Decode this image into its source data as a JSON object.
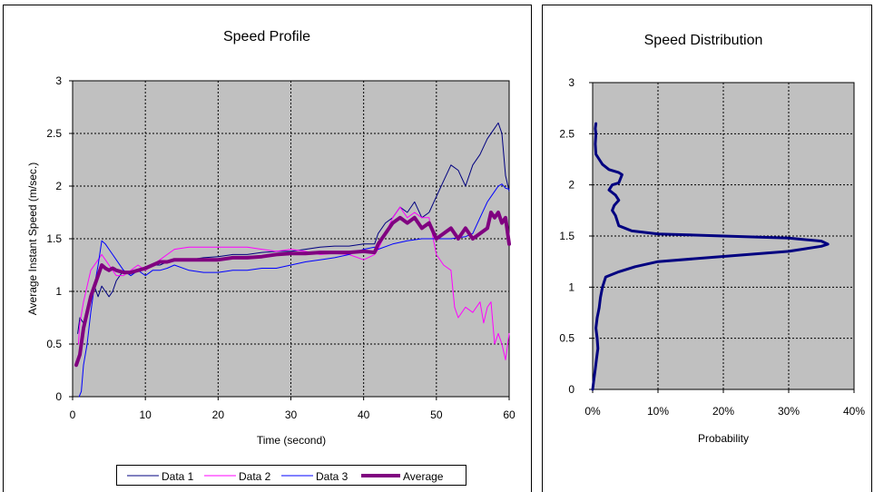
{
  "chart_data": [
    {
      "type": "line",
      "title": "Speed Profile",
      "xlabel": "Time (second)",
      "ylabel": "Average Instant Speed (m/sec.)",
      "xlim": [
        0,
        60
      ],
      "ylim": [
        0,
        3
      ],
      "x_ticks": [
        0,
        10,
        20,
        30,
        40,
        50,
        60
      ],
      "y_ticks": [
        0,
        0.5,
        1,
        1.5,
        2,
        2.5,
        3
      ],
      "x_tick_labels": [
        "0",
        "10",
        "20",
        "30",
        "40",
        "50",
        "60"
      ],
      "y_tick_labels": [
        "0",
        "0.5",
        "1",
        "1.5",
        "2",
        "2.5",
        "3"
      ],
      "grid": true,
      "plot_background": "#c0c0c0",
      "legend_position": "bottom",
      "series": [
        {
          "name": "Data 1",
          "color": "#000080",
          "x": [
            0.7,
            1.0,
            1.5,
            2.0,
            2.5,
            3.0,
            3.5,
            4.0,
            4.5,
            5.0,
            5.5,
            6.0,
            7.0,
            8.0,
            9.0,
            10.0,
            11.0,
            12.0,
            13.0,
            14.0,
            16.0,
            18.0,
            20.0,
            22.0,
            24.0,
            26.0,
            28.0,
            30.0,
            32.0,
            34.0,
            36.0,
            38.0,
            40.0,
            41.5,
            42.0,
            43.0,
            44.0,
            45.0,
            46.0,
            47.0,
            48.0,
            49.0,
            50.0,
            51.0,
            52.0,
            53.0,
            54.0,
            55.0,
            56.0,
            57.0,
            58.0,
            58.5,
            59.0,
            59.5,
            60.0
          ],
          "y": [
            0.6,
            0.75,
            0.7,
            0.85,
            0.95,
            1.05,
            0.95,
            1.05,
            1.0,
            0.95,
            1.0,
            1.1,
            1.2,
            1.15,
            1.2,
            1.22,
            1.25,
            1.25,
            1.28,
            1.3,
            1.3,
            1.32,
            1.33,
            1.35,
            1.35,
            1.37,
            1.38,
            1.38,
            1.4,
            1.42,
            1.43,
            1.43,
            1.45,
            1.45,
            1.55,
            1.65,
            1.7,
            1.8,
            1.75,
            1.85,
            1.7,
            1.75,
            1.9,
            2.05,
            2.2,
            2.15,
            2.0,
            2.2,
            2.3,
            2.45,
            2.55,
            2.6,
            2.5,
            2.1,
            1.95
          ]
        },
        {
          "name": "Data 2",
          "color": "#ff00ff",
          "x": [
            0.8,
            1.0,
            1.5,
            2.0,
            2.5,
            3.0,
            3.5,
            4.0,
            4.5,
            5.0,
            5.5,
            6.0,
            7.0,
            8.0,
            9.0,
            10.0,
            11.0,
            12.0,
            13.0,
            14.0,
            16.0,
            18.0,
            20.0,
            22.0,
            24.0,
            26.0,
            28.0,
            30.0,
            32.0,
            34.0,
            36.0,
            38.0,
            40.0,
            41.5,
            42.0,
            43.0,
            44.0,
            45.0,
            46.0,
            47.0,
            48.0,
            49.0,
            50.0,
            51.0,
            52.0,
            52.5,
            53.0,
            54.0,
            55.0,
            56.0,
            56.5,
            57.0,
            57.5,
            58.0,
            58.5,
            59.0,
            59.5,
            60.0
          ],
          "y": [
            0.5,
            0.7,
            0.9,
            1.05,
            1.2,
            1.25,
            1.3,
            1.35,
            1.3,
            1.25,
            1.2,
            1.15,
            1.15,
            1.2,
            1.25,
            1.2,
            1.25,
            1.3,
            1.35,
            1.4,
            1.42,
            1.42,
            1.42,
            1.42,
            1.42,
            1.4,
            1.38,
            1.4,
            1.38,
            1.35,
            1.36,
            1.35,
            1.3,
            1.35,
            1.4,
            1.55,
            1.7,
            1.8,
            1.7,
            1.75,
            1.7,
            1.7,
            1.35,
            1.25,
            1.2,
            0.85,
            0.75,
            0.85,
            0.8,
            0.9,
            0.7,
            0.85,
            0.9,
            0.5,
            0.6,
            0.5,
            0.35,
            0.6
          ]
        },
        {
          "name": "Data 3",
          "color": "#0000ff",
          "x": [
            0.9,
            1.2,
            1.5,
            2.0,
            2.5,
            3.0,
            3.5,
            4.0,
            4.5,
            5.0,
            5.5,
            6.0,
            7.0,
            8.0,
            9.0,
            10.0,
            11.0,
            12.0,
            13.0,
            14.0,
            16.0,
            18.0,
            20.0,
            22.0,
            24.0,
            26.0,
            28.0,
            30.0,
            32.0,
            34.0,
            36.0,
            38.0,
            40.0,
            41.5,
            42.0,
            44.0,
            46.0,
            48.0,
            50.0,
            52.0,
            54.0,
            55.0,
            56.0,
            57.0,
            58.0,
            58.5,
            59.0,
            59.5,
            60.0
          ],
          "y": [
            0.0,
            0.05,
            0.3,
            0.5,
            0.8,
            1.05,
            1.25,
            1.48,
            1.45,
            1.4,
            1.35,
            1.3,
            1.2,
            1.15,
            1.2,
            1.15,
            1.2,
            1.2,
            1.22,
            1.25,
            1.2,
            1.18,
            1.18,
            1.2,
            1.2,
            1.22,
            1.22,
            1.25,
            1.28,
            1.3,
            1.32,
            1.35,
            1.4,
            1.42,
            1.4,
            1.45,
            1.48,
            1.5,
            1.5,
            1.5,
            1.52,
            1.55,
            1.7,
            1.85,
            1.95,
            2.0,
            2.02,
            1.98,
            1.97
          ]
        },
        {
          "name": "Average",
          "color": "#800080",
          "x": [
            0.5,
            1.0,
            1.5,
            2.0,
            2.5,
            3.0,
            3.5,
            4.0,
            4.5,
            5.0,
            5.5,
            6.0,
            7.0,
            8.0,
            9.0,
            10.0,
            11.0,
            12.0,
            13.0,
            14.0,
            16.0,
            18.0,
            20.0,
            22.0,
            24.0,
            26.0,
            28.0,
            30.0,
            32.0,
            34.0,
            36.0,
            38.0,
            40.0,
            41.5,
            42.0,
            43.0,
            44.0,
            45.0,
            46.0,
            47.0,
            48.0,
            49.0,
            50.0,
            51.0,
            52.0,
            53.0,
            54.0,
            55.0,
            56.0,
            57.0,
            57.5,
            58.0,
            58.5,
            59.0,
            59.5,
            60.0
          ],
          "y": [
            0.3,
            0.4,
            0.65,
            0.8,
            0.95,
            1.05,
            1.15,
            1.25,
            1.22,
            1.2,
            1.22,
            1.2,
            1.18,
            1.18,
            1.2,
            1.22,
            1.25,
            1.28,
            1.28,
            1.3,
            1.3,
            1.3,
            1.3,
            1.32,
            1.32,
            1.33,
            1.35,
            1.36,
            1.36,
            1.37,
            1.37,
            1.37,
            1.38,
            1.37,
            1.45,
            1.55,
            1.65,
            1.7,
            1.65,
            1.7,
            1.6,
            1.65,
            1.5,
            1.55,
            1.6,
            1.5,
            1.6,
            1.5,
            1.55,
            1.6,
            1.75,
            1.7,
            1.75,
            1.65,
            1.7,
            1.45
          ]
        }
      ]
    },
    {
      "type": "line",
      "title": "Speed Distribution",
      "xlabel": "Probability",
      "ylabel": "",
      "xlim": [
        0,
        0.4
      ],
      "ylim": [
        0,
        3
      ],
      "x_ticks": [
        0,
        0.1,
        0.2,
        0.3,
        0.4
      ],
      "y_ticks": [
        0,
        0.5,
        1,
        1.5,
        2,
        2.5,
        3
      ],
      "x_tick_labels": [
        "0%",
        "10%",
        "20%",
        "30%",
        "40%"
      ],
      "y_tick_labels": [
        "0",
        "0.5",
        "1",
        "1.5",
        "2",
        "2.5",
        "3"
      ],
      "grid": true,
      "plot_background": "#c0c0c0",
      "series": [
        {
          "color": "#000080",
          "x": [
            0.0,
            0.002,
            0.004,
            0.006,
            0.008,
            0.007,
            0.005,
            0.007,
            0.01,
            0.012,
            0.015,
            0.02,
            0.04,
            0.065,
            0.1,
            0.2,
            0.3,
            0.35,
            0.36,
            0.35,
            0.3,
            0.2,
            0.1,
            0.06,
            0.04,
            0.035,
            0.03,
            0.033,
            0.04,
            0.035,
            0.025,
            0.03,
            0.04,
            0.045,
            0.04,
            0.025,
            0.015,
            0.01,
            0.005,
            0.004,
            0.005,
            0.004,
            0.005
          ],
          "y": [
            0.0,
            0.1,
            0.2,
            0.3,
            0.4,
            0.5,
            0.6,
            0.7,
            0.8,
            0.9,
            1.0,
            1.1,
            1.15,
            1.2,
            1.25,
            1.3,
            1.35,
            1.4,
            1.42,
            1.45,
            1.48,
            1.5,
            1.52,
            1.55,
            1.6,
            1.7,
            1.75,
            1.8,
            1.85,
            1.9,
            1.95,
            2.0,
            2.02,
            2.1,
            2.12,
            2.15,
            2.2,
            2.25,
            2.3,
            2.4,
            2.5,
            2.55,
            2.6
          ]
        }
      ]
    }
  ],
  "legend": {
    "items": [
      {
        "label": "Data 1",
        "color": "#000080",
        "width": 1
      },
      {
        "label": "Data 2",
        "color": "#ff00ff",
        "width": 1
      },
      {
        "label": "Data 3",
        "color": "#0000ff",
        "width": 1
      },
      {
        "label": "Average",
        "color": "#800080",
        "width": 4
      }
    ]
  }
}
